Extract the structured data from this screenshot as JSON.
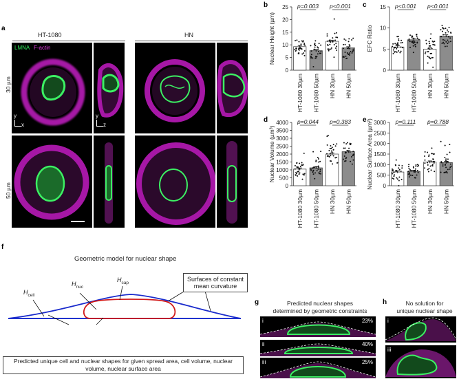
{
  "panel_a": {
    "label": "a",
    "col_headers": [
      "HT-1080",
      "HN"
    ],
    "row_labels": [
      "30 µm",
      "50 µm"
    ],
    "legend": {
      "lmna": "LMNA",
      "factin": "F-actin"
    },
    "axes": {
      "y": "y",
      "x": "x",
      "y2": "y",
      "z": "z"
    },
    "colors": {
      "lmna": "#2ee85a",
      "factin": "#d21fd2"
    }
  },
  "panel_f": {
    "label": "f",
    "title": "Geometric model for nuclear shape",
    "h_cell": "H",
    "h_cell_sub": "cell",
    "h_nuc": "H",
    "h_nuc_sub": "nuc",
    "h_cap": "H",
    "h_cap_sub": "cap",
    "box_top": "Surfaces of constant mean curvature",
    "box_bottom": "Predicted unique cell and nuclear shapes for given spread area, cell volume, nuclear volume, nuclear surface area"
  },
  "panel_g": {
    "label": "g",
    "title_line1": "Predicted nuclear shapes",
    "title_line2": "determined by geometric constraints",
    "items": [
      {
        "roman": "i",
        "pct": "23%"
      },
      {
        "roman": "ii",
        "pct": "40%"
      },
      {
        "roman": "iii",
        "pct": "25%"
      }
    ]
  },
  "panel_h": {
    "label": "h",
    "title_line1": "No solution for",
    "title_line2": "unique nuclear shape",
    "items": [
      {
        "roman": "i"
      },
      {
        "roman": "iii"
      }
    ]
  },
  "chart_data": [
    {
      "id": "b",
      "type": "bar",
      "categories": [
        "HT-1080 30µm",
        "HT-1080 50µm",
        "HN 30µm",
        "HN 50µm"
      ],
      "values": [
        9.3,
        7.7,
        11.4,
        8.8
      ],
      "ylabel": "Nuclear Height (µm)",
      "ylim": [
        0,
        25
      ],
      "yticks": [
        0,
        5,
        10,
        15,
        20,
        25
      ],
      "pvalues": [
        "p=0.003",
        "p<0.001"
      ]
    },
    {
      "id": "c",
      "type": "bar",
      "categories": [
        "HT-1080 30µm",
        "HT-1080 50µm",
        "HN 30µm",
        "HN 50µm"
      ],
      "values": [
        5.5,
        7.2,
        5.0,
        8.1
      ],
      "ylabel": "EFC Ratio",
      "ylim": [
        0,
        15
      ],
      "yticks": [
        0,
        5,
        10,
        15
      ],
      "pvalues": [
        "p<0.001",
        "p<0.001"
      ]
    },
    {
      "id": "d",
      "type": "bar",
      "categories": [
        "HT-1080 30µm",
        "HT-1080 50µm",
        "HN 30µm",
        "HN 50µm"
      ],
      "values": [
        1050,
        1130,
        2000,
        2150
      ],
      "ylabel": "Nuclear Volume (µm³)",
      "ylim": [
        0,
        4000
      ],
      "yticks": [
        0,
        500,
        1000,
        1500,
        2000,
        2500,
        3000,
        3500,
        4000
      ],
      "pvalues": [
        "p=0.044",
        "p=0.383"
      ]
    },
    {
      "id": "e",
      "type": "bar",
      "categories": [
        "HT-1080 30µm",
        "HT-1080 50µm",
        "HN 30µm",
        "HN 50µm"
      ],
      "values": [
        650,
        680,
        1120,
        1100
      ],
      "ylabel": "Nuclear Surface Area (µm²)",
      "ylim": [
        0,
        3000
      ],
      "yticks": [
        0,
        500,
        1000,
        1500,
        2000,
        2500,
        3000
      ],
      "pvalues": [
        "p=0.111",
        "p=0.788"
      ]
    }
  ]
}
